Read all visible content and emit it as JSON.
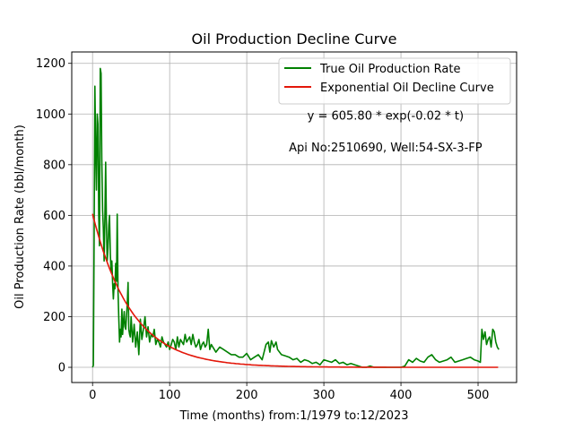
{
  "chart_data": {
    "type": "line",
    "title": "Oil Production Decline Curve",
    "xlabel": "Time (months) from:1/1979 to:12/2023",
    "ylabel": "Oil Production Rate (bbl/month)",
    "xlim": [
      -27,
      550
    ],
    "ylim": [
      -60,
      1245
    ],
    "x_ticks": [
      0,
      100,
      200,
      300,
      400,
      500
    ],
    "y_ticks": [
      0,
      200,
      400,
      600,
      800,
      1000,
      1200
    ],
    "grid": true,
    "legend_position": "top-right",
    "annotations": [
      {
        "text": "y = 605.80 * exp(-0.02 * t)",
        "x": 380,
        "y": 978
      },
      {
        "text": "Api No:2510690, Well:54-SX-3-FP",
        "x": 380,
        "y": 852
      }
    ],
    "series": [
      {
        "name": "True Oil Production Rate",
        "color": "#008000",
        "x": [
          0,
          1,
          2,
          3,
          4,
          5,
          6,
          7,
          8,
          9,
          10,
          11,
          12,
          13,
          14,
          15,
          16,
          17,
          18,
          19,
          20,
          21,
          22,
          23,
          24,
          25,
          26,
          27,
          28,
          29,
          30,
          31,
          32,
          33,
          34,
          35,
          36,
          37,
          38,
          39,
          40,
          41,
          42,
          43,
          44,
          45,
          46,
          47,
          48,
          49,
          50,
          52,
          54,
          56,
          58,
          60,
          62,
          64,
          66,
          68,
          70,
          72,
          74,
          76,
          78,
          80,
          82,
          84,
          86,
          88,
          90,
          92,
          94,
          96,
          98,
          100,
          102,
          104,
          106,
          108,
          110,
          112,
          114,
          116,
          118,
          120,
          122,
          124,
          126,
          128,
          130,
          132,
          134,
          136,
          138,
          140,
          142,
          144,
          146,
          148,
          150,
          152,
          154,
          156,
          158,
          160,
          165,
          170,
          175,
          180,
          185,
          190,
          195,
          200,
          205,
          210,
          215,
          220,
          225,
          228,
          230,
          232,
          235,
          238,
          240,
          245,
          250,
          255,
          260,
          265,
          270,
          275,
          280,
          285,
          290,
          295,
          300,
          305,
          310,
          315,
          320,
          325,
          330,
          335,
          340,
          345,
          350,
          355,
          360,
          365,
          370,
          380,
          390,
          400,
          405,
          410,
          415,
          420,
          425,
          430,
          435,
          440,
          445,
          450,
          455,
          460,
          465,
          470,
          475,
          480,
          485,
          490,
          495,
          500,
          503,
          505,
          507,
          509,
          511,
          513,
          515,
          517,
          519,
          521,
          523,
          525,
          527
        ],
        "y": [
          0,
          8,
          480,
          1110,
          880,
          700,
          1000,
          960,
          600,
          480,
          1180,
          1160,
          820,
          620,
          550,
          420,
          600,
          810,
          560,
          420,
          470,
          560,
          600,
          450,
          380,
          420,
          330,
          270,
          330,
          310,
          410,
          340,
          605,
          300,
          200,
          100,
          150,
          120,
          230,
          130,
          180,
          220,
          160,
          150,
          200,
          250,
          335,
          150,
          130,
          120,
          200,
          100,
          170,
          80,
          140,
          50,
          190,
          110,
          150,
          200,
          120,
          160,
          100,
          130,
          120,
          150,
          90,
          110,
          100,
          80,
          120,
          100,
          90,
          80,
          100,
          70,
          90,
          110,
          100,
          70,
          120,
          80,
          110,
          100,
          90,
          130,
          100,
          110,
          120,
          90,
          130,
          100,
          80,
          90,
          110,
          70,
          90,
          100,
          80,
          90,
          150,
          70,
          90,
          80,
          70,
          60,
          80,
          70,
          60,
          50,
          50,
          40,
          40,
          55,
          30,
          40,
          50,
          30,
          90,
          100,
          60,
          105,
          80,
          100,
          70,
          50,
          45,
          40,
          30,
          35,
          20,
          30,
          25,
          15,
          20,
          10,
          30,
          25,
          20,
          30,
          15,
          20,
          10,
          15,
          10,
          5,
          0,
          0,
          5,
          0,
          0,
          0,
          0,
          0,
          5,
          30,
          20,
          35,
          25,
          20,
          40,
          50,
          30,
          20,
          25,
          30,
          40,
          20,
          25,
          30,
          35,
          40,
          30,
          25,
          20,
          150,
          110,
          140,
          90,
          110,
          120,
          80,
          150,
          140,
          100,
          80,
          70
        ],
        "data_points_note": ""
      },
      {
        "name": "Exponential Oil Decline Curve",
        "color": "#e3170a",
        "a": 605.8,
        "b": 0.02,
        "x_range": [
          0,
          527
        ]
      }
    ]
  }
}
